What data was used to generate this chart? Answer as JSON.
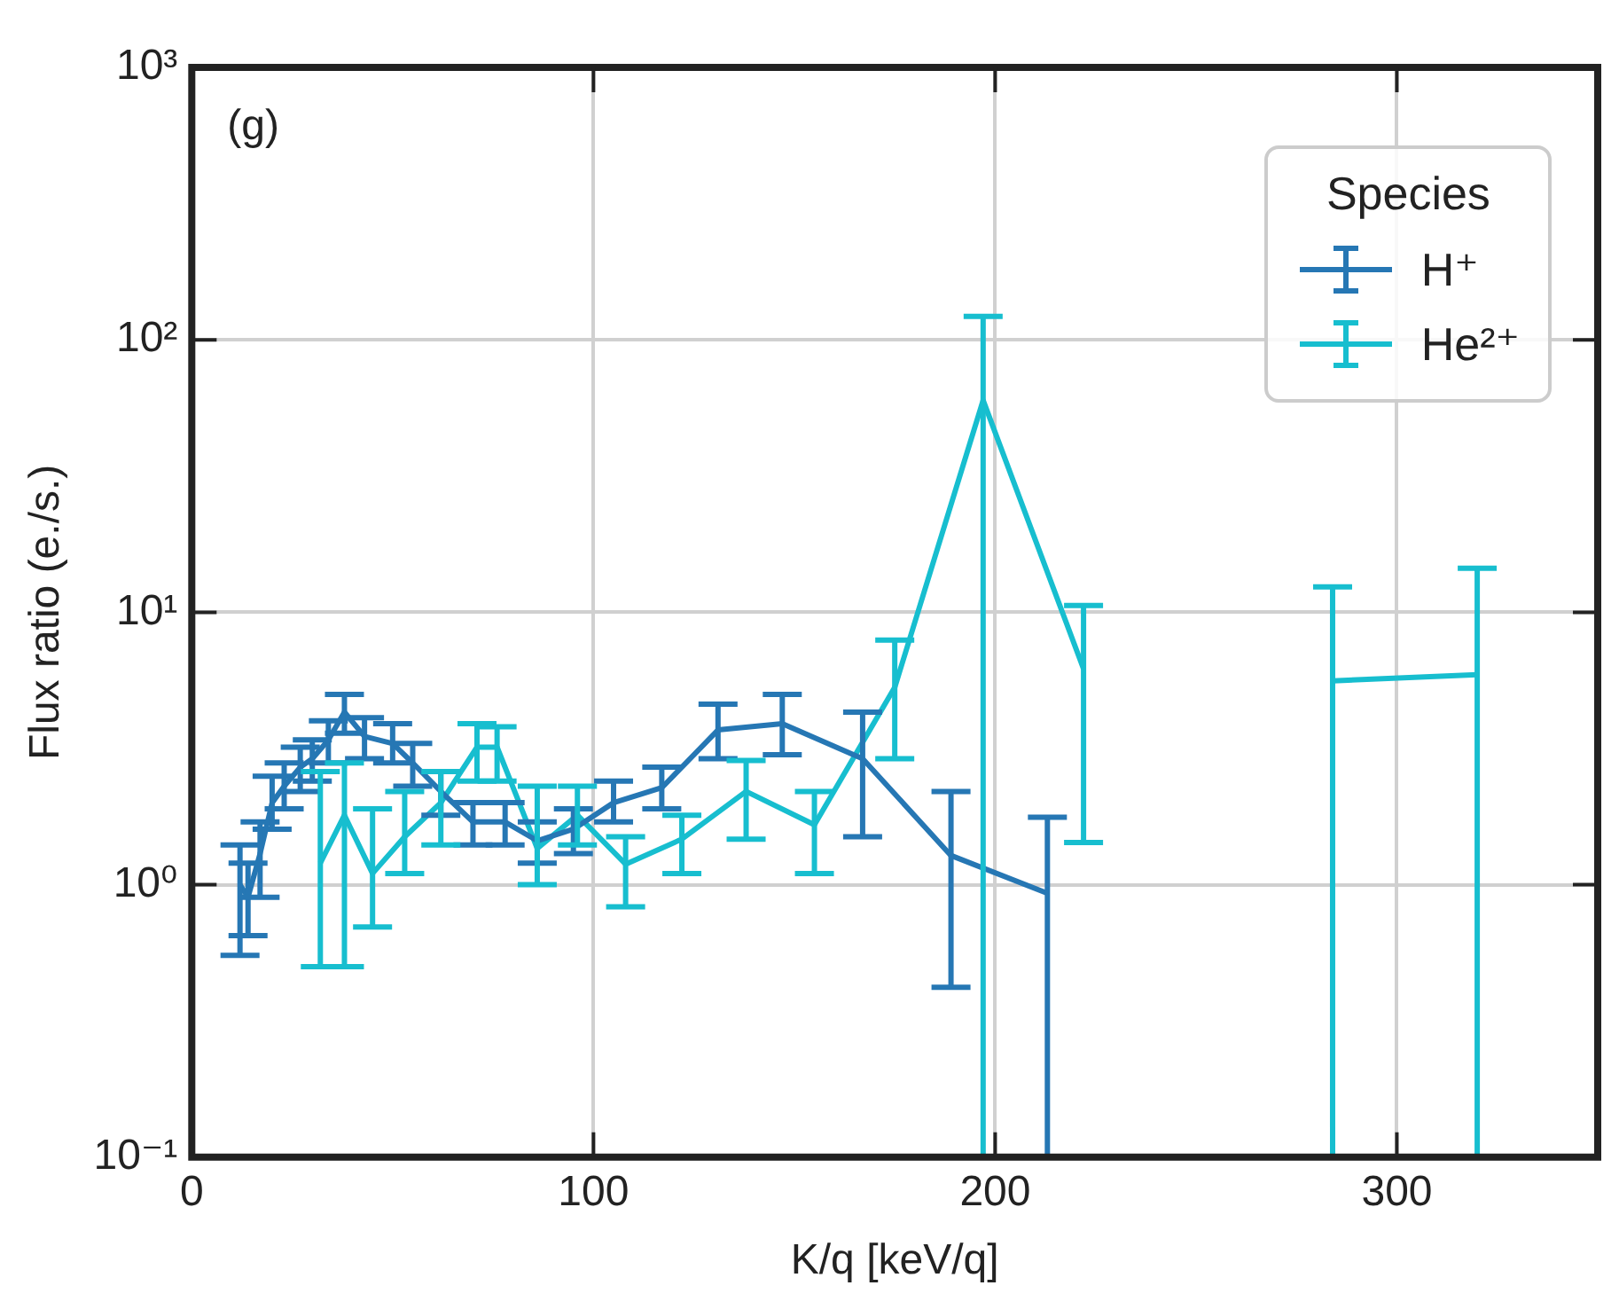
{
  "chart_data": {
    "type": "line",
    "xlabel": "K/q [keV/q]",
    "ylabel": "Flux ratio (e./s.)",
    "annotations": [
      "(g)"
    ],
    "xlim": [
      0,
      350
    ],
    "xticks": [
      0,
      100,
      200,
      300
    ],
    "ylim": [
      0.1,
      1000
    ],
    "yticks": [
      {
        "value": 0.1,
        "label": "10⁻¹"
      },
      {
        "value": 1,
        "label": "10⁰"
      },
      {
        "value": 10,
        "label": "10¹"
      },
      {
        "value": 100,
        "label": "10²"
      },
      {
        "value": 1000,
        "label": "10³"
      }
    ],
    "log": "y",
    "grid": true,
    "legend": "top right",
    "legend_title": "Species",
    "marker": "none",
    "line_style": "solid",
    "series": [
      {
        "name": "H⁺",
        "color": "#2677b4",
        "x": [
          12,
          14,
          17,
          20,
          23,
          27,
          30,
          34,
          38,
          43,
          50,
          55,
          62,
          70,
          78,
          86,
          95,
          105,
          117,
          131,
          147,
          167,
          189,
          213
        ],
        "values": [
          1.0,
          0.9,
          1.3,
          2.0,
          2.3,
          2.7,
          2.9,
          3.4,
          4.3,
          3.5,
          3.3,
          2.8,
          2.2,
          1.7,
          1.7,
          1.45,
          1.6,
          2.0,
          2.27,
          3.7,
          3.9,
          2.9,
          1.28,
          0.93
        ],
        "errors": [
          [
            0.55,
            1.4
          ],
          [
            0.65,
            1.2
          ],
          [
            0.9,
            1.7
          ],
          [
            1.6,
            2.5
          ],
          [
            1.9,
            2.8
          ],
          [
            2.2,
            3.2
          ],
          [
            2.4,
            3.4
          ],
          [
            2.8,
            4.0
          ],
          [
            3.6,
            5.0
          ],
          [
            2.9,
            4.1
          ],
          [
            2.8,
            3.9
          ],
          [
            2.3,
            3.3
          ],
          [
            1.8,
            2.6
          ],
          [
            1.4,
            2.0
          ],
          [
            1.4,
            2.0
          ],
          [
            1.2,
            1.7
          ],
          [
            1.3,
            1.9
          ],
          [
            1.7,
            2.4
          ],
          [
            1.9,
            2.7
          ],
          [
            2.9,
            4.6
          ],
          [
            3.0,
            5.0
          ],
          [
            1.5,
            4.3
          ],
          [
            0.42,
            2.2
          ],
          [
            0.1,
            1.77
          ]
        ]
      },
      {
        "name": "He²⁺",
        "color": "#17becf",
        "x": [
          32,
          38,
          45,
          53,
          62,
          71,
          76,
          86,
          96,
          108,
          122,
          138,
          155,
          175,
          197,
          222,
          250,
          284,
          320
        ],
        "values": [
          1.2,
          1.8,
          1.1,
          1.5,
          2.0,
          3.2,
          3.2,
          1.36,
          1.8,
          1.19,
          1.47,
          2.2,
          1.66,
          5.3,
          60,
          6.2,
          null,
          5.6,
          5.9
        ],
        "errors": [
          [
            0.5,
            2.6
          ],
          [
            0.5,
            2.8
          ],
          [
            0.7,
            1.9
          ],
          [
            1.1,
            2.2
          ],
          [
            1.4,
            2.6
          ],
          [
            2.4,
            3.9
          ],
          [
            2.4,
            3.8
          ],
          [
            1.0,
            2.3
          ],
          [
            1.4,
            2.3
          ],
          [
            0.83,
            1.5
          ],
          [
            1.1,
            1.8
          ],
          [
            1.47,
            2.86
          ],
          [
            1.1,
            2.2
          ],
          [
            2.9,
            7.9
          ],
          [
            0.1,
            122
          ],
          [
            1.43,
            10.6
          ],
          null,
          [
            0.1,
            12.4
          ],
          [
            0.1,
            14.5
          ]
        ]
      }
    ]
  }
}
